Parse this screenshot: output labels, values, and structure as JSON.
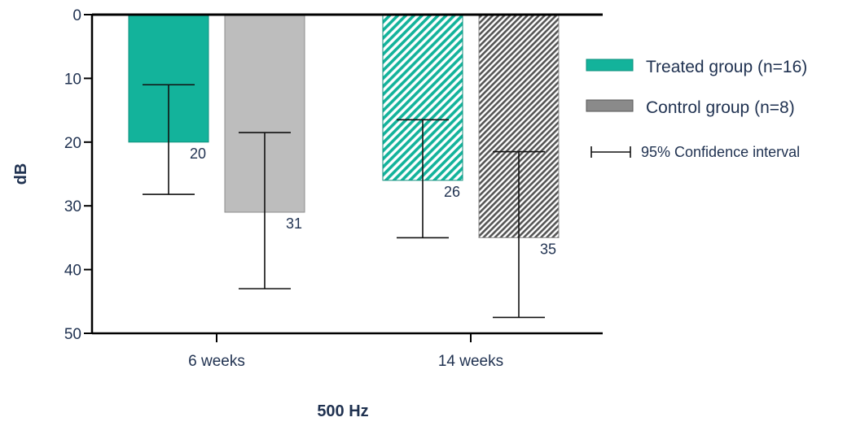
{
  "chart_data": {
    "type": "bar",
    "categories": [
      "6 weeks",
      "14 weeks"
    ],
    "series": [
      {
        "name": "Treated group (n=16)",
        "color": "#13b39b",
        "values": [
          20,
          26
        ],
        "ci_low": [
          11,
          16.5
        ],
        "ci_high": [
          28.2,
          35
        ]
      },
      {
        "name": "Control group (n=8)",
        "color": "#bdbdbd",
        "values": [
          31,
          35
        ],
        "ci_low": [
          18.5,
          21.5
        ],
        "ci_high": [
          43,
          47.5
        ]
      }
    ],
    "value_labels": [
      [
        "20",
        "26"
      ],
      [
        "31",
        "35"
      ]
    ],
    "hatched_categories": [
      "14 weeks"
    ],
    "ylabel": "dB",
    "xlabel": "500 Hz",
    "ylim": [
      0,
      50
    ],
    "y_inverted": true,
    "yticks": [
      "0",
      "10",
      "20",
      "30",
      "40",
      "50"
    ],
    "legend_ci_label": "95% Confidence interval",
    "legend_position": "right",
    "grid": false
  }
}
